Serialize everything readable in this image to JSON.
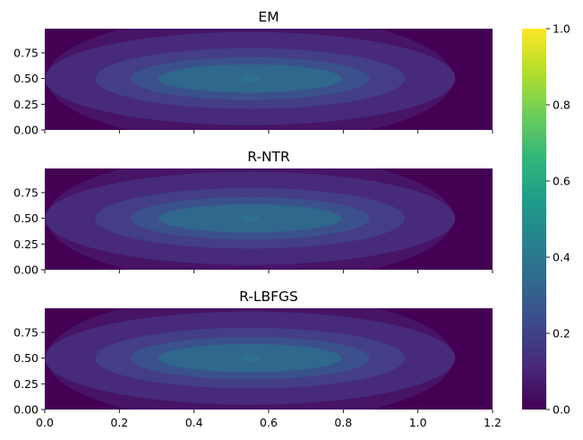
{
  "chart_data": [
    {
      "type": "contour",
      "title": "EM",
      "xlim": [
        0,
        1.2
      ],
      "ylim": [
        0,
        1
      ],
      "yticks": [
        "0.00",
        "0.25",
        "0.50",
        "0.75"
      ],
      "xtick_labels_visible": false,
      "peak": {
        "x": 0.55,
        "y": 0.5,
        "value": 0.5
      },
      "contour_levels": [
        0.0,
        0.05,
        0.1,
        0.2,
        0.3,
        0.4,
        0.5
      ],
      "colormap": "viridis"
    },
    {
      "type": "contour",
      "title": "R-NTR",
      "xlim": [
        0,
        1.2
      ],
      "ylim": [
        0,
        1
      ],
      "yticks": [
        "0.00",
        "0.25",
        "0.50",
        "0.75"
      ],
      "xtick_labels_visible": false,
      "peak": {
        "x": 0.55,
        "y": 0.5,
        "value": 0.5
      },
      "contour_levels": [
        0.0,
        0.05,
        0.1,
        0.2,
        0.3,
        0.4,
        0.5
      ],
      "colormap": "viridis"
    },
    {
      "type": "contour",
      "title": "R-LBFGS",
      "xlim": [
        0,
        1.2
      ],
      "ylim": [
        0,
        1
      ],
      "yticks": [
        "0.00",
        "0.25",
        "0.50",
        "0.75"
      ],
      "xticks": [
        "0.0",
        "0.2",
        "0.4",
        "0.6",
        "0.8",
        "1.0",
        "1.2"
      ],
      "xtick_labels_visible": true,
      "peak": {
        "x": 0.55,
        "y": 0.5,
        "value": 0.5
      },
      "contour_levels": [
        0.0,
        0.05,
        0.1,
        0.2,
        0.3,
        0.4,
        0.5
      ],
      "colormap": "viridis"
    }
  ],
  "colorbar": {
    "range": [
      0,
      1
    ],
    "ticks": [
      "0.0",
      "0.2",
      "0.4",
      "0.6",
      "0.8",
      "1.0"
    ],
    "colormap": "viridis"
  },
  "colors": {
    "viridis_stops": [
      "#440154",
      "#482878",
      "#3e4989",
      "#31688e",
      "#26828e",
      "#1f9e89",
      "#35b779",
      "#6ece58",
      "#b5de2b",
      "#fde725"
    ],
    "level_fills": [
      "#440154",
      "#471466",
      "#472a7a",
      "#433e85",
      "#3b518b",
      "#30678d",
      "#2c728e"
    ]
  }
}
